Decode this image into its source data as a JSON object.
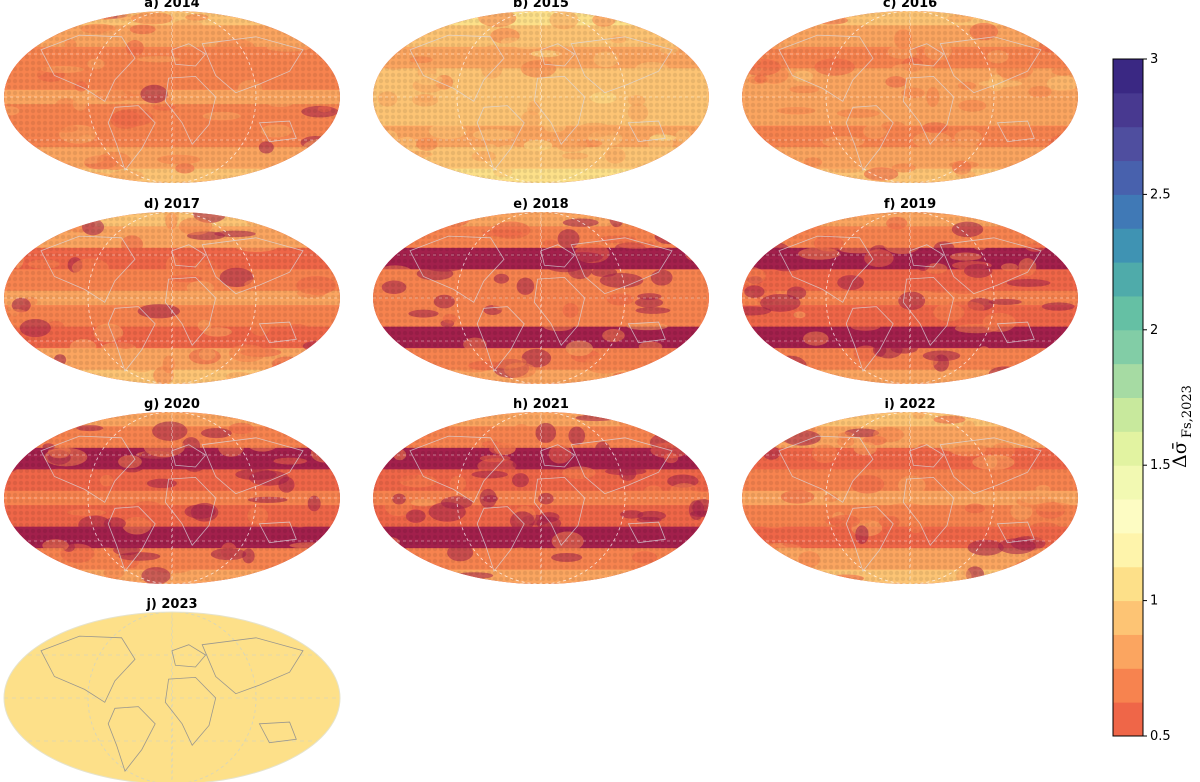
{
  "figure": {
    "panels": [
      {
        "title": "a) 2014",
        "level": 0.72
      },
      {
        "title": "b) 2015",
        "level": 0.86
      },
      {
        "title": "c) 2016",
        "level": 0.74
      },
      {
        "title": "d) 2017",
        "level": 0.7
      },
      {
        "title": "e) 2018",
        "level": 0.62
      },
      {
        "title": "f) 2019",
        "level": 0.6
      },
      {
        "title": "g) 2020",
        "level": 0.58
      },
      {
        "title": "h) 2021",
        "level": 0.6
      },
      {
        "title": "i) 2022",
        "level": 0.68
      },
      {
        "title": "j) 2023",
        "level": 1.0
      }
    ],
    "colorbar": {
      "min": 0.5,
      "max": 3,
      "step": 0.125,
      "ticks": [
        "0.5",
        "1",
        "1.5",
        "2",
        "2.5",
        "3"
      ],
      "label_main": "Δσ̄",
      "label_sub": "Fs,2023",
      "colors": [
        "#ef6648",
        "#f7834f",
        "#fba560",
        "#fdc474",
        "#fde089",
        "#fef4ab",
        "#fdfcc3",
        "#f2f9b2",
        "#e2f3a1",
        "#c8e99d",
        "#a6dba3",
        "#82cda6",
        "#65c0a4",
        "#4fabaa",
        "#3f93b3",
        "#4079b6",
        "#4861ad",
        "#4f4e9f",
        "#483990",
        "#3a2883"
      ]
    }
  }
}
